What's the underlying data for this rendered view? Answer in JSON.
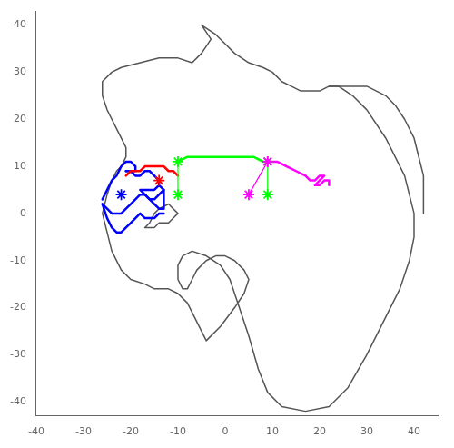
{
  "chart_data": {
    "type": "line",
    "xlim": [
      -40,
      45
    ],
    "ylim": [
      -43,
      43
    ],
    "xticks": [
      -40,
      -30,
      -20,
      -10,
      0,
      10,
      20,
      30,
      40
    ],
    "yticks": [
      -40,
      -30,
      -20,
      -10,
      0,
      10,
      20,
      30,
      40
    ],
    "grid": false,
    "legend": false,
    "series": [
      {
        "type": "line",
        "color": "#555555",
        "line_style": "solid",
        "x": [
          -5,
          -2,
          0,
          2,
          5,
          8,
          10,
          12,
          14,
          16,
          18,
          20,
          22,
          24,
          27,
          30,
          34,
          38,
          40,
          40,
          39,
          37,
          34,
          30,
          26,
          22,
          17,
          12,
          9,
          7,
          5,
          3,
          1,
          -1,
          -4,
          -7,
          -9,
          -10,
          -10,
          -9,
          -8,
          -7,
          -6,
          -4,
          -2,
          0,
          2,
          4,
          5,
          4,
          2,
          -1,
          -4,
          -8,
          -10,
          -12,
          -15,
          -17,
          -20,
          -22,
          -24,
          -25,
          -26,
          -25,
          -24,
          -23,
          -22,
          -21,
          -21,
          -22,
          -23,
          -24,
          -25,
          -26,
          -26,
          -24,
          -22,
          -18,
          -14,
          -10,
          -7,
          -5,
          -3,
          -5
        ],
        "values": [
          40,
          38,
          36,
          34,
          32,
          31,
          30,
          28,
          27,
          26,
          26,
          26,
          27,
          27,
          25,
          22,
          16,
          8,
          0,
          -5,
          -10,
          -16,
          -22,
          -30,
          -37,
          -41,
          -42,
          -41,
          -38,
          -33,
          -26,
          -20,
          -14,
          -11,
          -9,
          -8,
          -9,
          -11,
          -14,
          -16,
          -16,
          -14,
          -12,
          -10,
          -9,
          -9,
          -10,
          -12,
          -14,
          -17,
          -20,
          -24,
          -27,
          -19,
          -17,
          -16,
          -16,
          -15,
          -14,
          -12,
          -8,
          -4,
          0,
          4,
          7,
          9,
          10,
          12,
          14,
          16,
          18,
          20,
          22,
          25,
          28,
          30,
          31,
          32,
          33,
          33,
          32,
          34,
          37,
          40
        ]
      },
      {
        "type": "line",
        "color": "#555555",
        "line_style": "solid",
        "x": [
          22,
          24,
          26,
          28,
          30,
          32,
          34,
          36,
          38,
          40,
          41,
          42,
          42,
          42
        ],
        "values": [
          27,
          27,
          27,
          27,
          27,
          26,
          25,
          23,
          20,
          16,
          12,
          8,
          4,
          0
        ]
      },
      {
        "type": "line",
        "color": "#555555",
        "line_style": "solid",
        "x": [
          -12,
          -13,
          -14,
          -15,
          -16,
          -17,
          -16,
          -15,
          -14,
          -12,
          -11,
          -10,
          -11,
          -12
        ],
        "values": [
          -2,
          -2,
          -2,
          -3,
          -3,
          -3,
          -2,
          0,
          1,
          2,
          1,
          0,
          -1,
          -2
        ]
      },
      {
        "type": "line",
        "color": "blue",
        "line_style": "solid",
        "x": [
          -26,
          -25,
          -24,
          -23,
          -22,
          -21,
          -20,
          -19,
          -19,
          -20,
          -21
        ],
        "values": [
          3,
          5,
          7,
          8,
          10,
          11,
          11,
          10,
          9,
          9,
          9
        ]
      },
      {
        "type": "line",
        "color": "blue",
        "line_style": "solid",
        "x": [
          -21,
          -20,
          -19,
          -18,
          -17,
          -16,
          -15,
          -14,
          -14,
          -15,
          -16,
          -17,
          -18,
          -17,
          -16,
          -15,
          -14,
          -13,
          -14
        ],
        "values": [
          9,
          9,
          8,
          8,
          9,
          9,
          8,
          7,
          6,
          5,
          5,
          5,
          5,
          4,
          3,
          3,
          4,
          5,
          6
        ]
      },
      {
        "type": "line",
        "color": "blue",
        "line_style": "solid",
        "x": [
          -26,
          -25,
          -24,
          -23,
          -22,
          -21,
          -20,
          -19,
          -18,
          -17,
          -16,
          -15,
          -14,
          -13,
          -13,
          -13,
          -13,
          -13
        ],
        "values": [
          2,
          1,
          0,
          0,
          0,
          1,
          2,
          3,
          4,
          4,
          3,
          2,
          1,
          1,
          2,
          3,
          4,
          5
        ]
      },
      {
        "type": "line",
        "color": "blue",
        "line_style": "solid",
        "x": [
          -26,
          -25,
          -24,
          -23,
          -22,
          -21,
          -20,
          -19,
          -18,
          -17,
          -16,
          -15,
          -14,
          -13
        ],
        "values": [
          2,
          -1,
          -3,
          -4,
          -4,
          -3,
          -2,
          -1,
          0,
          -1,
          -1,
          -1,
          0,
          0
        ]
      },
      {
        "type": "line",
        "color": "red",
        "line_style": "solid",
        "x": [
          -21,
          -20,
          -19,
          -18,
          -17,
          -16,
          -15,
          -14,
          -13,
          -12,
          -11,
          -10
        ],
        "values": [
          8,
          9,
          9,
          9,
          10,
          10,
          10,
          10,
          10,
          9,
          9,
          8
        ]
      },
      {
        "type": "line",
        "color": "lime",
        "line_style": "solid",
        "x": [
          -10,
          -8,
          -6,
          -4,
          -2,
          0,
          2,
          4,
          6,
          8,
          9
        ],
        "values": [
          11,
          12,
          12,
          12,
          12,
          12,
          12,
          12,
          12,
          11,
          11
        ]
      },
      {
        "type": "line",
        "color": "magenta",
        "line_style": "solid",
        "x": [
          9,
          11,
          13,
          15,
          17,
          18,
          19,
          20,
          21,
          20,
          19,
          20,
          21,
          22,
          22
        ],
        "values": [
          11,
          11,
          10,
          9,
          8,
          7,
          7,
          8,
          8,
          7,
          6,
          6,
          7,
          7,
          6
        ]
      },
      {
        "type": "line",
        "color": "lime",
        "line_style": "solid",
        "x": [
          -10,
          -10
        ],
        "values": [
          11,
          4
        ]
      },
      {
        "type": "line",
        "color": "lime",
        "line_style": "solid",
        "x": [
          9,
          9
        ],
        "values": [
          11,
          4
        ]
      },
      {
        "type": "line",
        "color": "magenta",
        "line_style": "solid",
        "x": [
          9,
          5
        ],
        "values": [
          11,
          4
        ]
      },
      {
        "type": "scatter",
        "color": "lime",
        "marker": "star",
        "x": [
          -10,
          -10,
          9,
          9
        ],
        "values": [
          11,
          4,
          11,
          4
        ]
      },
      {
        "type": "scatter",
        "color": "magenta",
        "marker": "star",
        "x": [
          9,
          5
        ],
        "values": [
          11,
          4
        ]
      },
      {
        "type": "scatter",
        "color": "red",
        "marker": "star",
        "x": [
          -14
        ],
        "values": [
          7
        ]
      },
      {
        "type": "scatter",
        "color": "blue",
        "marker": "star",
        "x": [
          -22
        ],
        "values": [
          4
        ]
      }
    ]
  }
}
